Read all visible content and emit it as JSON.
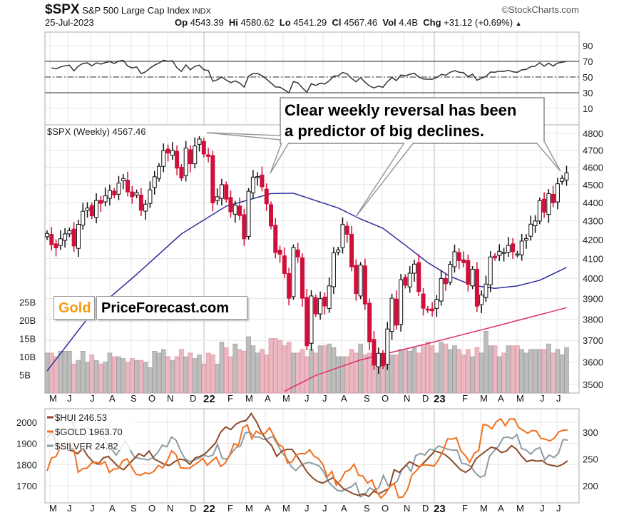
{
  "header": {
    "symbol": "$SPX",
    "name": "S&P 500 Large Cap Index",
    "exchange": "INDX",
    "watermark": "©StockCharts.com",
    "date": "25-Jul-2023",
    "op_label": "Op",
    "op": "4543.39",
    "hi_label": "Hi",
    "hi": "4580.62",
    "lo_label": "Lo",
    "lo": "4541.29",
    "cl_label": "Cl",
    "cl": "4567.46",
    "vol_label": "Vol",
    "vol": "4.4B",
    "chg_label": "Chg",
    "chg": "+31.12 (+0.69%)",
    "chg_icon": "triangle-up-icon"
  },
  "annotation": {
    "line1": "Clear weekly reversal  has been",
    "line2": "a predictor of big declines."
  },
  "logo": {
    "part1": "Gold",
    "part2": "PriceForecast.com",
    "accent": "#f39c12"
  },
  "colors": {
    "up_candle": "#ffffff",
    "down_candle": "#d0103a",
    "ma_blue": "#2e2e9c",
    "ma_red": "#e0306a",
    "vol_up": "#bdbdbd",
    "vol_down": "#eab8c0",
    "gold": "#f07020",
    "hui": "#8b4a2b",
    "silver": "#8c9ca2"
  },
  "chart_data": [
    {
      "type": "line",
      "title": "RSI",
      "y_ticks": [
        "90",
        "70",
        "50",
        "30",
        "10"
      ],
      "ylim": [
        0,
        100
      ],
      "reference_lines": [
        70,
        50,
        30
      ]
    },
    {
      "type": "candlestick",
      "legend": "$SPX (Weekly) 4567.46",
      "scale": "log",
      "ylim": [
        3500,
        4800
      ],
      "y_ticks": [
        "4800",
        "4700",
        "4600",
        "4500",
        "4400",
        "4300",
        "4200",
        "4100",
        "4000",
        "3900",
        "3800",
        "3700",
        "3600",
        "3500"
      ],
      "x_ticks": [
        "M",
        "J",
        "J",
        "A",
        "S",
        "O",
        "N",
        "D",
        "22",
        "F",
        "M",
        "A",
        "M",
        "J",
        "J",
        "A",
        "S",
        "O",
        "N",
        "D",
        "23",
        "F",
        "M",
        "A",
        "M",
        "J",
        "J"
      ],
      "closes": [
        4232,
        4173,
        4156,
        4204,
        4230,
        4247,
        4166,
        4281,
        4352,
        4370,
        4327,
        4412,
        4395,
        4437,
        4468,
        4442,
        4509,
        4535,
        4459,
        4433,
        4455,
        4357,
        4391,
        4471,
        4545,
        4605,
        4697,
        4683,
        4698,
        4595,
        4538,
        4712,
        4620,
        4725,
        4766,
        4677,
        4663,
        4398,
        4432,
        4500,
        4419,
        4349,
        4385,
        4329,
        4204,
        4463,
        4543,
        4546,
        4488,
        4393,
        4272,
        4132,
        4123,
        4024,
        3901,
        4158,
        4109,
        3901,
        3675,
        3912,
        3825,
        3899,
        3863,
        3962,
        4130,
        4145,
        4280,
        4228,
        4058,
        3924,
        4067,
        3873,
        3693,
        3586,
        3640,
        3583,
        3753,
        3901,
        3771,
        3993,
        3965,
        4026,
        4072,
        3934,
        3852,
        3845,
        3840,
        3895,
        3999,
        3973,
        4071,
        4136,
        4090,
        4079,
        3970,
        4046,
        3862,
        3917,
        3971,
        4109,
        4105,
        4138,
        4133,
        4169,
        4136,
        4124,
        4192,
        4205,
        4282,
        4299,
        4410,
        4348,
        4450,
        4399,
        4505,
        4536,
        4567.46
      ],
      "ma_blue": [
        [
          0,
          3560
        ],
        [
          10,
          3830
        ],
        [
          20,
          4020
        ],
        [
          30,
          4230
        ],
        [
          40,
          4380
        ],
        [
          50,
          4450
        ],
        [
          55,
          4452
        ],
        [
          65,
          4370
        ],
        [
          70,
          4310
        ],
        [
          75,
          4260
        ],
        [
          80,
          4170
        ],
        [
          85,
          4080
        ],
        [
          90,
          4010
        ],
        [
          95,
          3965
        ],
        [
          100,
          3950
        ],
        [
          105,
          3962
        ],
        [
          110,
          3990
        ],
        [
          116,
          4055
        ]
      ],
      "ma_red": [
        [
          53,
          3470
        ],
        [
          60,
          3540
        ],
        [
          70,
          3610
        ],
        [
          85,
          3685
        ],
        [
          100,
          3765
        ],
        [
          116,
          3855
        ]
      ],
      "volume_ticks": [
        "25B",
        "20B",
        "15B",
        "10B",
        "5B"
      ],
      "volume_b": [
        11,
        11,
        10,
        11.5,
        11.5,
        11.5,
        8,
        9,
        11.5,
        8.5,
        10.5,
        9,
        8,
        8.5,
        11,
        10,
        10,
        9.5,
        8.5,
        9.5,
        9,
        9,
        8.5,
        7,
        11.5,
        11,
        12,
        10,
        9,
        10,
        12,
        10,
        11,
        9.5,
        10.5,
        8,
        11,
        10.5,
        8,
        14,
        12.5,
        10,
        13.5,
        12,
        11.5,
        15.5,
        13,
        11,
        12,
        10.5,
        15,
        15,
        14.5,
        13,
        14,
        11,
        11,
        12,
        10,
        12,
        11,
        13,
        13,
        13.5,
        12.5,
        10,
        10,
        10,
        12,
        11,
        13.5,
        10.5,
        11,
        10,
        10,
        10,
        8,
        10.5,
        10.5,
        12,
        12,
        11.5,
        12.5,
        11,
        13,
        14,
        13,
        11,
        14,
        13.5,
        12,
        13,
        12,
        10.5,
        12,
        10,
        12.5,
        11,
        17,
        13,
        13,
        10,
        11,
        13,
        13,
        13,
        12,
        11,
        12,
        12,
        12,
        12,
        13.5,
        11,
        12,
        10.5,
        12.5,
        13.5,
        4.4
      ]
    },
    {
      "type": "line",
      "left_ticks": [
        "2000",
        "1900",
        "1800",
        "1700"
      ],
      "right_ticks": [
        "300",
        "250",
        "200"
      ],
      "x_ticks": [
        "M",
        "J",
        "J",
        "A",
        "S",
        "O",
        "N",
        "D",
        "22",
        "F",
        "M",
        "A",
        "M",
        "J",
        "J",
        "A",
        "S",
        "O",
        "N",
        "D",
        "23",
        "F",
        "M",
        "A",
        "M",
        "J",
        "J"
      ],
      "series": [
        {
          "name": "$HUI 246.53",
          "values": [
            290,
            300,
            275,
            270,
            268,
            265,
            260,
            270,
            255,
            245,
            240,
            252,
            255,
            245,
            235,
            230,
            240,
            250,
            260,
            255,
            265,
            250,
            245,
            240,
            238,
            245,
            250,
            248,
            240,
            252,
            255,
            260,
            270,
            280,
            300,
            310,
            305,
            315,
            320,
            322,
            335,
            320,
            300,
            285,
            275,
            255,
            265,
            268,
            268,
            255,
            240,
            225,
            215,
            208,
            205,
            210,
            215,
            205,
            195,
            190,
            185,
            182,
            185,
            180,
            190,
            185,
            190,
            195,
            230,
            225,
            235,
            245,
            240,
            235,
            245,
            255,
            265,
            262,
            258,
            250,
            240,
            230,
            225,
            232,
            250,
            258,
            265,
            272,
            270,
            262,
            265,
            275,
            268,
            255,
            245,
            248,
            246,
            247,
            240,
            238,
            236,
            240,
            246.53
          ]
        },
        {
          "name": "$GOLD 1963.70",
          "values": [
            1770,
            1831,
            1838,
            1881,
            1902,
            1892,
            1877,
            1764,
            1781,
            1783,
            1808,
            1812,
            1801,
            1814,
            1763,
            1779,
            1781,
            1818,
            1827,
            1788,
            1754,
            1750,
            1761,
            1757,
            1768,
            1796,
            1784,
            1818,
            1865,
            1846,
            1785,
            1783,
            1783,
            1798,
            1811,
            1829,
            1797,
            1817,
            1835,
            1792,
            1807,
            1842,
            1899,
            1889,
            1974,
            1988,
            1921,
            1958,
            1945,
            1948,
            1974,
            1934,
            1896,
            1883,
            1808,
            1812,
            1846,
            1852,
            1851,
            1870,
            1840,
            1828,
            1800,
            1742,
            1768,
            1703,
            1727,
            1766,
            1775,
            1802,
            1750,
            1746,
            1712,
            1728,
            1675,
            1643,
            1661,
            1695,
            1711,
            1644,
            1648,
            1682,
            1751,
            1771,
            1797,
            1799,
            1797,
            1793,
            1824,
            1865,
            1922,
            1920,
            1927,
            1865,
            1842,
            1811,
            1853,
            1866,
            1990,
            1985,
            1969,
            2004,
            2016,
            1983,
            2016,
            2016,
            1975,
            1962,
            1948,
            1961,
            1958,
            1924,
            1920,
            1912,
            1925,
            1955,
            1962,
            1963.7
          ]
        },
        {
          "name": "$SILVER 24.82",
          "values": [
            27.4,
            27.6,
            28.0,
            27.9,
            27.6,
            27.9,
            26.0,
            26.1,
            26.2,
            26.3,
            25.5,
            25.8,
            25.5,
            24.4,
            23.7,
            23.0,
            23.8,
            24.7,
            23.7,
            22.7,
            22.6,
            22.5,
            22.4,
            22.7,
            23.3,
            24.2,
            24.0,
            25.2,
            24.8,
            23.5,
            22.5,
            22.2,
            22.4,
            22.6,
            23.0,
            22.8,
            23.0,
            24.3,
            22.6,
            22.5,
            23.2,
            23.9,
            24.1,
            25.7,
            25.8,
            25.2,
            25.2,
            24.9,
            25.0,
            25.3,
            24.3,
            23.3,
            22.6,
            21.6,
            21.1,
            21.7,
            22.0,
            22.1,
            21.9,
            21.7,
            21.0,
            19.8,
            19.2,
            18.7,
            18.6,
            18.9,
            19.1,
            19.6,
            17.9,
            18.2,
            19.0,
            18.7,
            19.0,
            20.5,
            19.3,
            19.4,
            19.8,
            21.2,
            21.8,
            21.0,
            22.9,
            23.2,
            23.0,
            23.7,
            23.6,
            24.1,
            23.9,
            23.7,
            23.6,
            23.6,
            22.0,
            21.9,
            21.6,
            20.8,
            20.3,
            20.5,
            22.8,
            23.5,
            24.1,
            25.1,
            25.2,
            25.0,
            25.5,
            23.8,
            23.6,
            23.1,
            23.7,
            23.9,
            22.4,
            23.0,
            22.7,
            23.2,
            24.9,
            24.82
          ]
        }
      ]
    }
  ]
}
